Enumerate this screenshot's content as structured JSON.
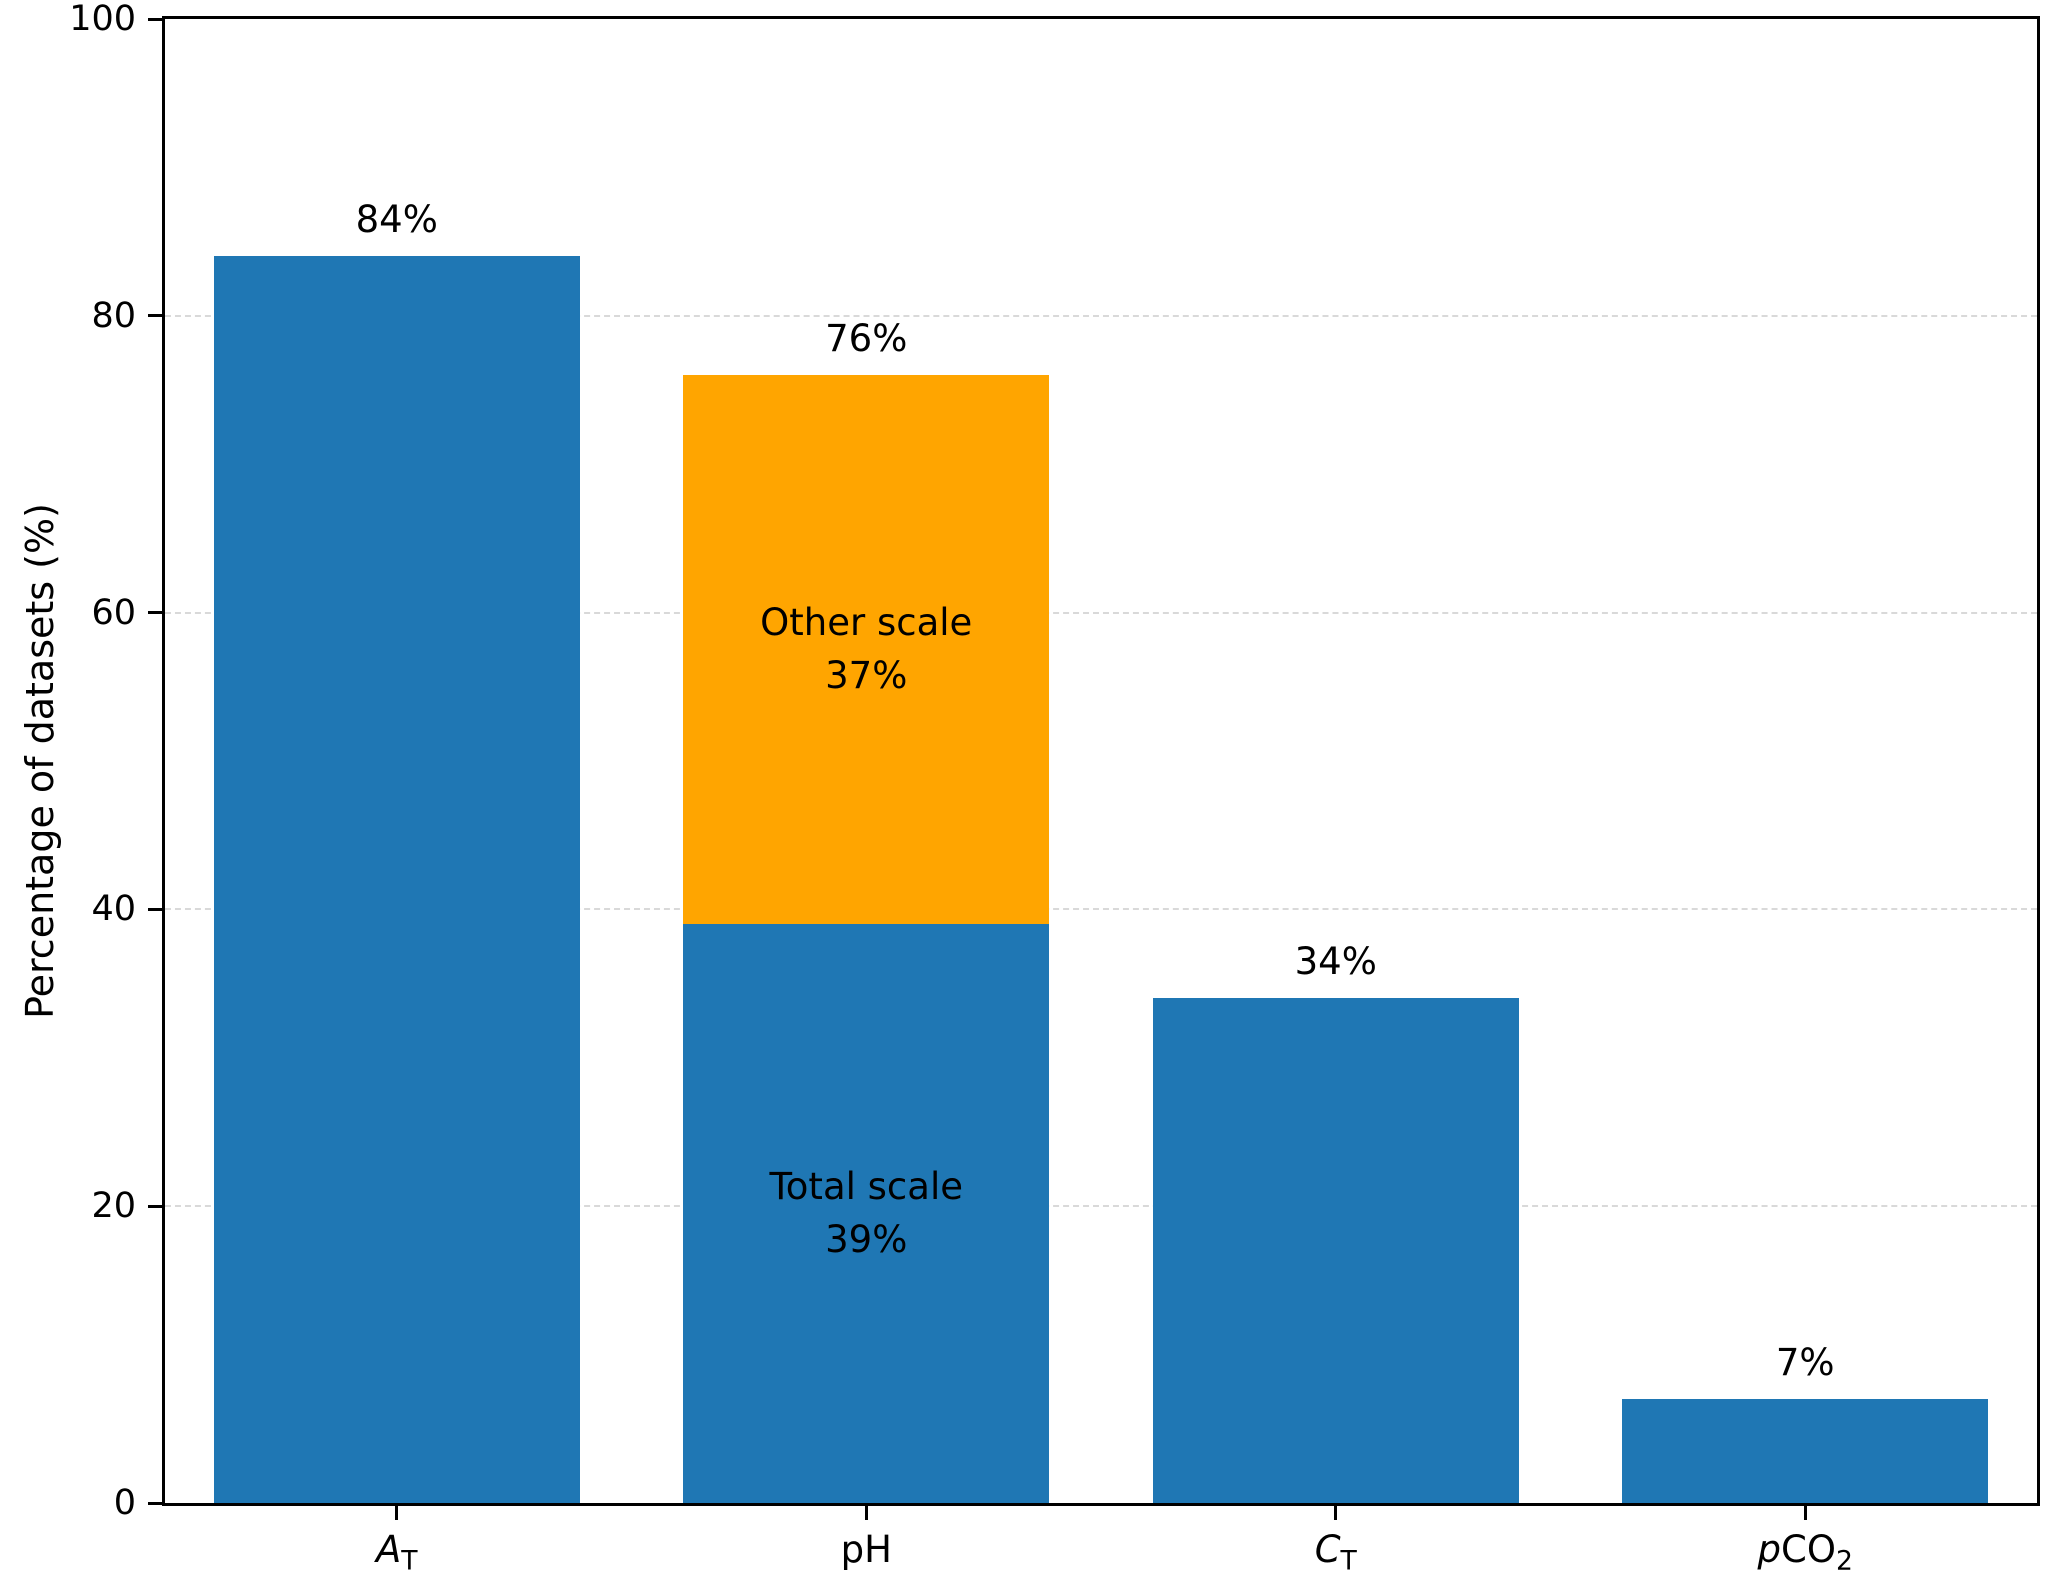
{
  "chart_data": {
    "type": "bar",
    "stacked": true,
    "title": "",
    "xlabel": "",
    "ylabel": "Percentage of datasets (%)",
    "ylim": [
      0,
      100
    ],
    "legend": "none",
    "yticks": [
      {
        "value": 0,
        "label": "0"
      },
      {
        "value": 20,
        "label": "20"
      },
      {
        "value": 40,
        "label": "40"
      },
      {
        "value": 60,
        "label": "60"
      },
      {
        "value": 80,
        "label": "80"
      },
      {
        "value": 100,
        "label": "100"
      }
    ],
    "gridlines": {
      "axis": "y",
      "style": "dashed",
      "values": [
        20,
        40,
        60,
        80
      ]
    },
    "categories": [
      {
        "id": "AT",
        "label_parts": [
          {
            "text": "A",
            "italic": true
          },
          {
            "text": "T",
            "sub": true
          }
        ]
      },
      {
        "id": "pH",
        "label_parts": [
          {
            "text": "pH"
          }
        ]
      },
      {
        "id": "CT",
        "label_parts": [
          {
            "text": "C",
            "italic": true
          },
          {
            "text": "T",
            "sub": true
          }
        ]
      },
      {
        "id": "pCO2",
        "label_parts": [
          {
            "text": "p",
            "italic": true
          },
          {
            "text": "CO"
          },
          {
            "text": "2",
            "sub": true
          }
        ]
      }
    ],
    "bars": [
      {
        "category": "AT",
        "total_value": 84,
        "total_label": "84%",
        "segments": [
          {
            "value": 84,
            "color": "blue"
          }
        ]
      },
      {
        "category": "pH",
        "total_value": 76,
        "total_label": "76%",
        "segments": [
          {
            "value": 39,
            "color": "blue",
            "segment_label": "Total scale",
            "segment_pct": "39%"
          },
          {
            "value": 37,
            "color": "orange",
            "segment_label": "Other scale",
            "segment_pct": "37%"
          }
        ]
      },
      {
        "category": "CT",
        "total_value": 34,
        "total_label": "34%",
        "segments": [
          {
            "value": 34,
            "color": "blue"
          }
        ]
      },
      {
        "category": "pCO2",
        "total_value": 7,
        "total_label": "7%",
        "segments": [
          {
            "value": 7,
            "color": "blue"
          }
        ]
      }
    ],
    "colors": {
      "blue": "#1f77b4",
      "orange": "#ffa500",
      "grid": "#d9d9d9",
      "axis": "#000000",
      "text": "#000000",
      "background": "#ffffff"
    }
  }
}
